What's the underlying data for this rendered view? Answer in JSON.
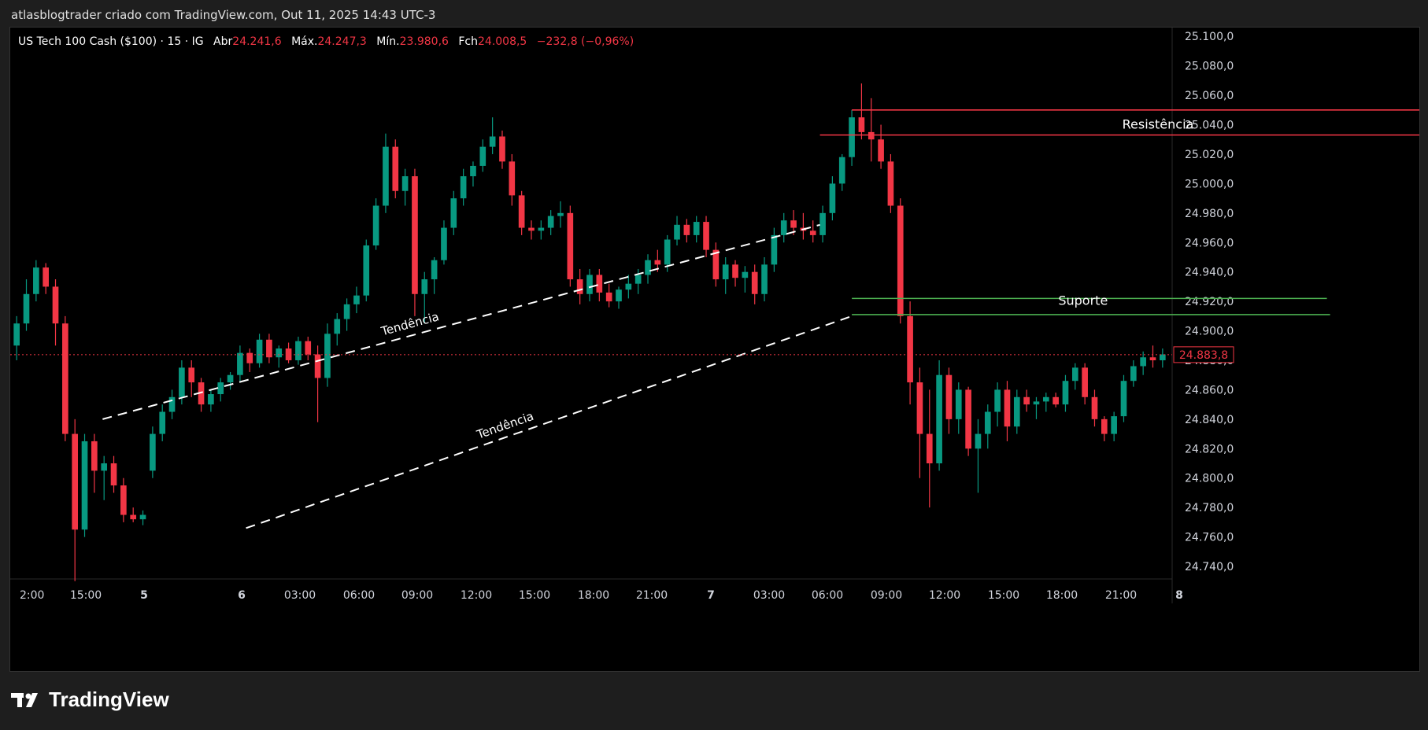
{
  "header": {
    "title": "atlasblogtrader criado com TradingView.com, Out 11, 2025 14:43 UTC-3"
  },
  "legend": {
    "symbol": "US Tech 100 Cash ($100) · 15 · IG",
    "open_label": "Abr",
    "open": "24.241,6",
    "high_label": "Máx.",
    "high": "24.247,3",
    "low_label": "Mín.",
    "low": "23.980,6",
    "close_label": "Fch",
    "close": "24.008,5",
    "change": "−232,8 (−0,96%)"
  },
  "footer": {
    "brand": "TradingView",
    "logo_icon": "tradingview-logo-icon"
  },
  "chart_data": {
    "type": "candlestick",
    "y_ticks": [
      "25.100,0",
      "25.080,0",
      "25.060,0",
      "25.040,0",
      "25.020,0",
      "25.000,0",
      "24.980,0",
      "24.960,0",
      "24.940,0",
      "24.920,0",
      "24.900,0",
      "24.880,0",
      "24.860,0",
      "24.840,0",
      "24.820,0",
      "24.800,0",
      "24.780,0",
      "24.760,0",
      "24.740,0"
    ],
    "y_tick_values": [
      25100,
      25080,
      25060,
      25040,
      25020,
      25000,
      24980,
      24960,
      24940,
      24920,
      24900,
      24880,
      24860,
      24840,
      24820,
      24800,
      24780,
      24760,
      24740
    ],
    "ylim": [
      24732,
      25106
    ],
    "x_ticks": [
      "2:00",
      "15:00",
      "5",
      "6",
      "03:00",
      "06:00",
      "09:00",
      "12:00",
      "15:00",
      "18:00",
      "21:00",
      "7",
      "03:00",
      "06:00",
      "09:00",
      "12:00",
      "15:00",
      "18:00",
      "21:00",
      "8"
    ],
    "last_price": "24.883,8",
    "colors": {
      "up": "#089981",
      "down": "#f23645",
      "resistance": "#f23645",
      "support": "#4caf50",
      "annotation": "#ffffff"
    },
    "annotations": [
      {
        "text": "Resistência",
        "kind": "horizontal",
        "color": "#f23645",
        "level": 25033,
        "start": "2025-10-06 06:00",
        "end": "2025-10-07 18:00"
      },
      {
        "kind": "horizontal",
        "color": "#f23645",
        "level": 25050,
        "start": "2025-10-06 07:40",
        "end": "2025-10-07 20:00"
      },
      {
        "text": "Suporte",
        "kind": "horizontal",
        "color": "#4caf50",
        "level": 24922,
        "start": "2025-10-06 07:40",
        "end": "2025-10-07 08:30"
      },
      {
        "kind": "horizontal",
        "color": "#4caf50",
        "level": 24911,
        "start": "2025-10-06 07:40",
        "end": "2025-10-07 08:40"
      },
      {
        "text": "Tendência",
        "kind": "dashed-trendline",
        "color": "#ffffff",
        "from": [
          "2025-10-04 16:30",
          24840
        ],
        "to": [
          "2025-10-06 06:00",
          24972
        ]
      },
      {
        "text": "Tendência",
        "kind": "dashed-trendline",
        "color": "#ffffff",
        "from": [
          "2025-10-05 00:00",
          24766
        ],
        "to": [
          "2025-10-06 07:40",
          24910
        ]
      }
    ],
    "candles": [
      [
        24890,
        24910,
        24880,
        24905
      ],
      [
        24905,
        24935,
        24900,
        24925
      ],
      [
        24925,
        24948,
        24920,
        24943
      ],
      [
        24943,
        24946,
        24925,
        24930
      ],
      [
        24930,
        24935,
        24890,
        24905
      ],
      [
        24905,
        24910,
        24825,
        24830
      ],
      [
        24830,
        24840,
        24730,
        24765
      ],
      [
        24765,
        24830,
        24760,
        24825
      ],
      [
        24825,
        24830,
        24790,
        24805
      ],
      [
        24805,
        24815,
        24785,
        24810
      ],
      [
        24810,
        24815,
        24790,
        24795
      ],
      [
        24795,
        24800,
        24770,
        24775
      ],
      [
        24775,
        24780,
        24770,
        24772
      ],
      [
        24772,
        24778,
        24768,
        24775
      ],
      [
        24805,
        24835,
        24800,
        24830
      ],
      [
        24830,
        24850,
        24825,
        24845
      ],
      [
        24845,
        24860,
        24840,
        24855
      ],
      [
        24855,
        24880,
        24850,
        24875
      ],
      [
        24875,
        24880,
        24855,
        24865
      ],
      [
        24865,
        24868,
        24845,
        24850
      ],
      [
        24850,
        24860,
        24845,
        24857
      ],
      [
        24857,
        24868,
        24852,
        24865
      ],
      [
        24865,
        24872,
        24860,
        24870
      ],
      [
        24870,
        24890,
        24866,
        24885
      ],
      [
        24885,
        24888,
        24872,
        24878
      ],
      [
        24878,
        24898,
        24875,
        24894
      ],
      [
        24894,
        24898,
        24878,
        24882
      ],
      [
        24882,
        24890,
        24875,
        24888
      ],
      [
        24888,
        24892,
        24878,
        24880
      ],
      [
        24880,
        24896,
        24877,
        24893
      ],
      [
        24893,
        24896,
        24880,
        24884
      ],
      [
        24884,
        24890,
        24838,
        24868
      ],
      [
        24868,
        24905,
        24862,
        24898
      ],
      [
        24898,
        24912,
        24890,
        24908
      ],
      [
        24908,
        24922,
        24900,
        24918
      ],
      [
        24918,
        24930,
        24912,
        24924
      ],
      [
        24924,
        24962,
        24920,
        24958
      ],
      [
        24958,
        24990,
        24955,
        24985
      ],
      [
        24985,
        25034,
        24980,
        25025
      ],
      [
        25025,
        25030,
        24990,
        24995
      ],
      [
        24995,
        25010,
        24985,
        25005
      ],
      [
        25005,
        25010,
        24910,
        24925
      ],
      [
        24925,
        24940,
        24905,
        24935
      ],
      [
        24935,
        24950,
        24925,
        24948
      ],
      [
        24948,
        24975,
        24945,
        24970
      ],
      [
        24970,
        24995,
        24965,
        24990
      ],
      [
        24990,
        25010,
        24985,
        25005
      ],
      [
        25005,
        25015,
        24998,
        25012
      ],
      [
        25012,
        25030,
        25008,
        25025
      ],
      [
        25025,
        25045,
        25020,
        25032
      ],
      [
        25032,
        25036,
        25010,
        25015
      ],
      [
        25015,
        25020,
        24985,
        24992
      ],
      [
        24992,
        24995,
        24965,
        24970
      ],
      [
        24970,
        24975,
        24962,
        24968
      ],
      [
        24968,
        24975,
        24962,
        24970
      ],
      [
        24970,
        24982,
        24965,
        24978
      ],
      [
        24978,
        24988,
        24970,
        24980
      ],
      [
        24980,
        24985,
        24930,
        24935
      ],
      [
        24935,
        24942,
        24918,
        24925
      ],
      [
        24925,
        24942,
        24920,
        24938
      ],
      [
        24938,
        24942,
        24920,
        24926
      ],
      [
        24926,
        24932,
        24916,
        24920
      ],
      [
        24920,
        24930,
        24915,
        24928
      ],
      [
        24928,
        24938,
        24922,
        24932
      ],
      [
        24932,
        24942,
        24925,
        24938
      ],
      [
        24938,
        24952,
        24932,
        24948
      ],
      [
        24948,
        24955,
        24940,
        24945
      ],
      [
        24945,
        24965,
        24940,
        24962
      ],
      [
        24962,
        24978,
        24958,
        24972
      ],
      [
        24972,
        24976,
        24960,
        24965
      ],
      [
        24965,
        24978,
        24960,
        24974
      ],
      [
        24974,
        24978,
        24950,
        24955
      ],
      [
        24955,
        24960,
        24930,
        24935
      ],
      [
        24935,
        24950,
        24925,
        24945
      ],
      [
        24945,
        24948,
        24930,
        24936
      ],
      [
        24936,
        24944,
        24926,
        24940
      ],
      [
        24940,
        24945,
        24918,
        24925
      ],
      [
        24925,
        24950,
        24920,
        24945
      ],
      [
        24945,
        24970,
        24940,
        24965
      ],
      [
        24965,
        24980,
        24960,
        24975
      ],
      [
        24975,
        24982,
        24965,
        24970
      ],
      [
        24970,
        24980,
        24962,
        24968
      ],
      [
        24968,
        24975,
        24960,
        24965
      ],
      [
        24965,
        24985,
        24960,
        24980
      ],
      [
        24980,
        25005,
        24975,
        25000
      ],
      [
        25000,
        25020,
        24995,
        25018
      ],
      [
        25018,
        25050,
        25012,
        25045
      ],
      [
        25045,
        25068,
        25030,
        25035
      ],
      [
        25035,
        25058,
        25015,
        25030
      ],
      [
        25030,
        25040,
        25010,
        25015
      ],
      [
        25015,
        25020,
        24980,
        24985
      ],
      [
        24985,
        24990,
        24905,
        24910
      ],
      [
        24910,
        24920,
        24850,
        24865
      ],
      [
        24865,
        24875,
        24800,
        24830
      ],
      [
        24830,
        24860,
        24780,
        24810
      ],
      [
        24810,
        24880,
        24805,
        24870
      ],
      [
        24870,
        24875,
        24830,
        24840
      ],
      [
        24840,
        24865,
        24830,
        24860
      ],
      [
        24860,
        24862,
        24815,
        24820
      ],
      [
        24820,
        24840,
        24790,
        24830
      ],
      [
        24830,
        24850,
        24820,
        24845
      ],
      [
        24845,
        24865,
        24835,
        24860
      ],
      [
        24860,
        24866,
        24825,
        24835
      ],
      [
        24835,
        24860,
        24830,
        24855
      ],
      [
        24855,
        24860,
        24845,
        24850
      ],
      [
        24850,
        24855,
        24840,
        24852
      ],
      [
        24852,
        24858,
        24845,
        24855
      ],
      [
        24855,
        24858,
        24848,
        24850
      ],
      [
        24850,
        24870,
        24845,
        24866
      ],
      [
        24866,
        24878,
        24860,
        24875
      ],
      [
        24875,
        24878,
        24850,
        24855
      ],
      [
        24855,
        24860,
        24835,
        24840
      ],
      [
        24840,
        24842,
        24825,
        24830
      ],
      [
        24830,
        24845,
        24825,
        24842
      ],
      [
        24842,
        24870,
        24838,
        24866
      ],
      [
        24866,
        24880,
        24862,
        24876
      ],
      [
        24876,
        24886,
        24870,
        24882
      ],
      [
        24882,
        24890,
        24875,
        24880
      ],
      [
        24880,
        24888,
        24875,
        24884
      ]
    ]
  }
}
